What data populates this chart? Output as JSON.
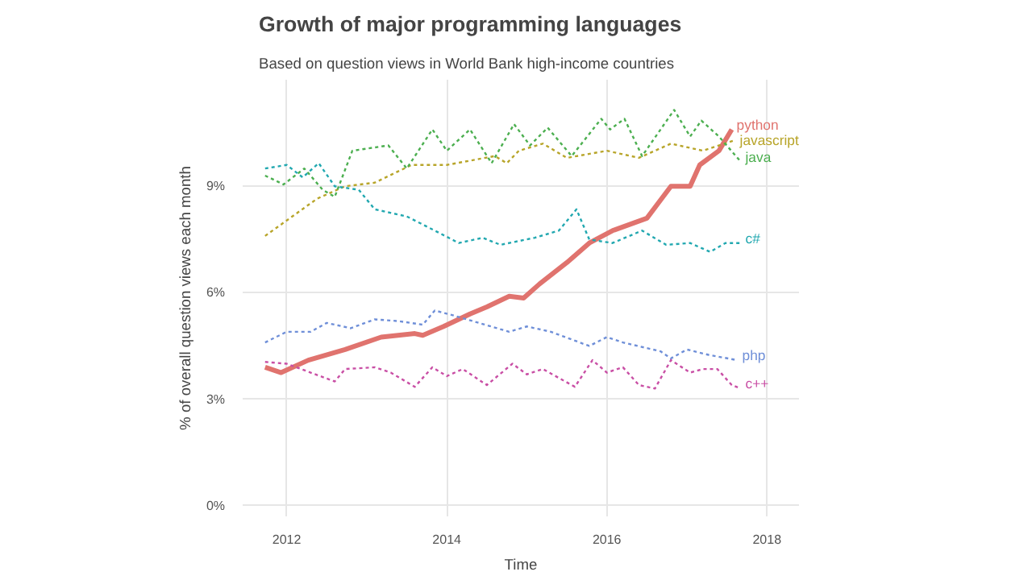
{
  "chart_data": {
    "type": "line",
    "title": "Growth of major programming languages",
    "subtitle": "Based on question views in World Bank high-income countries",
    "xlabel": "Time",
    "ylabel": "% of overall question views each month",
    "xlim": [
      2011.45,
      2018.4
    ],
    "ylim": [
      -0.3,
      12
    ],
    "xticks": [
      2012,
      2014,
      2016,
      2018
    ],
    "yticks": [
      {
        "value": 0,
        "label": "0%"
      },
      {
        "value": 3,
        "label": "3%"
      },
      {
        "value": 6,
        "label": "6%"
      },
      {
        "value": 9,
        "label": "9%"
      }
    ],
    "grid": true,
    "legend": false,
    "marker": "none",
    "series": [
      {
        "name": "python",
        "color": "#e0736e",
        "line_style": "solid",
        "x": [
          2011.73,
          2011.93,
          2012.27,
          2012.73,
          2013.18,
          2013.6,
          2013.7,
          2013.96,
          2014.29,
          2014.5,
          2014.78,
          2014.96,
          2015.16,
          2015.5,
          2015.78,
          2016.07,
          2016.5,
          2016.8,
          2017.04,
          2017.16,
          2017.4,
          2017.56
        ],
        "values": [
          3.9,
          3.75,
          4.1,
          4.4,
          4.75,
          4.85,
          4.8,
          5.05,
          5.4,
          5.6,
          5.9,
          5.85,
          6.25,
          6.85,
          7.4,
          7.75,
          8.1,
          9.0,
          9.0,
          9.6,
          10.0,
          10.6
        ]
      },
      {
        "name": "javascript",
        "color": "#b8a52a",
        "line_style": "dotted",
        "x": [
          2011.73,
          2012.38,
          2012.73,
          2013.1,
          2013.56,
          2014.0,
          2014.6,
          2014.75,
          2014.9,
          2015.2,
          2015.5,
          2016.0,
          2016.4,
          2016.8,
          2017.2,
          2017.6
        ],
        "values": [
          7.6,
          8.65,
          9.0,
          9.1,
          9.6,
          9.6,
          9.85,
          9.65,
          10.0,
          10.2,
          9.8,
          10.0,
          9.8,
          10.2,
          10.0,
          10.3
        ]
      },
      {
        "name": "java",
        "color": "#4caf50",
        "line_style": "dotted",
        "x": [
          2011.73,
          2011.96,
          2012.22,
          2012.45,
          2012.6,
          2012.82,
          2013.27,
          2013.5,
          2013.82,
          2014.0,
          2014.29,
          2014.56,
          2014.84,
          2015.04,
          2015.26,
          2015.56,
          2015.93,
          2016.04,
          2016.22,
          2016.44,
          2016.84,
          2017.04,
          2017.18,
          2017.4,
          2017.67
        ],
        "values": [
          9.3,
          9.05,
          9.5,
          8.9,
          8.7,
          10.0,
          10.15,
          9.5,
          10.6,
          10.0,
          10.6,
          9.65,
          10.75,
          10.15,
          10.65,
          9.85,
          10.9,
          10.6,
          10.9,
          9.85,
          11.15,
          10.4,
          10.85,
          10.4,
          9.7
        ]
      },
      {
        "name": "c#",
        "color": "#22a8b0",
        "line_style": "dotted",
        "x": [
          2011.73,
          2012.0,
          2012.2,
          2012.4,
          2012.6,
          2012.9,
          2013.1,
          2013.5,
          2013.85,
          2014.15,
          2014.45,
          2014.67,
          2015.1,
          2015.4,
          2015.62,
          2015.78,
          2016.07,
          2016.44,
          2016.74,
          2017.04,
          2017.29,
          2017.48,
          2017.67
        ],
        "values": [
          9.5,
          9.6,
          9.25,
          9.65,
          9.0,
          8.9,
          8.35,
          8.15,
          7.75,
          7.4,
          7.55,
          7.35,
          7.55,
          7.75,
          8.35,
          7.5,
          7.4,
          7.75,
          7.35,
          7.4,
          7.15,
          7.4,
          7.4
        ]
      },
      {
        "name": "php",
        "color": "#6f8fd8",
        "line_style": "dotted",
        "x": [
          2011.73,
          2012.0,
          2012.3,
          2012.5,
          2012.8,
          2013.1,
          2013.4,
          2013.7,
          2013.85,
          2014.1,
          2014.4,
          2014.78,
          2015.0,
          2015.3,
          2015.78,
          2016.0,
          2016.2,
          2016.67,
          2016.8,
          2017.0,
          2017.27,
          2017.63
        ],
        "values": [
          4.6,
          4.9,
          4.9,
          5.15,
          5.0,
          5.25,
          5.2,
          5.1,
          5.5,
          5.35,
          5.15,
          4.9,
          5.05,
          4.9,
          4.5,
          4.75,
          4.6,
          4.35,
          4.15,
          4.4,
          4.25,
          4.1
        ]
      },
      {
        "name": "c++",
        "color": "#c94fa5",
        "line_style": "dotted",
        "x": [
          2011.73,
          2012.0,
          2012.3,
          2012.6,
          2012.73,
          2013.1,
          2013.3,
          2013.6,
          2013.82,
          2014.0,
          2014.2,
          2014.5,
          2014.82,
          2015.0,
          2015.2,
          2015.6,
          2015.82,
          2016.0,
          2016.2,
          2016.4,
          2016.6,
          2016.8,
          2017.04,
          2017.2,
          2017.38,
          2017.56,
          2017.67
        ],
        "values": [
          4.05,
          4.0,
          3.75,
          3.5,
          3.85,
          3.9,
          3.75,
          3.35,
          3.9,
          3.65,
          3.85,
          3.4,
          4.0,
          3.7,
          3.85,
          3.35,
          4.1,
          3.75,
          3.9,
          3.4,
          3.3,
          4.1,
          3.75,
          3.85,
          3.85,
          3.4,
          3.3
        ]
      }
    ]
  }
}
